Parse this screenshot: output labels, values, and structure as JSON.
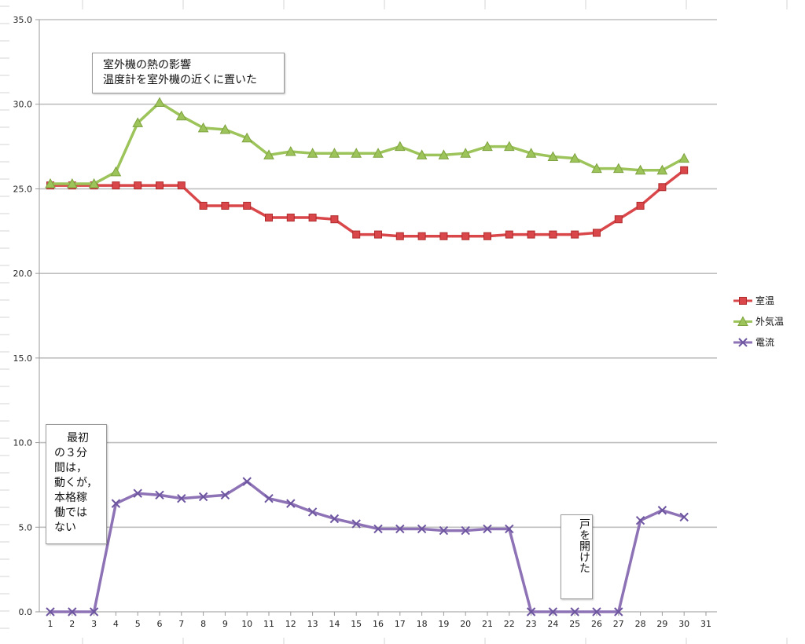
{
  "colors": {
    "room": "#d9474a",
    "outside": "#9cc45a",
    "current": "#8e72b6",
    "grid": "#bfbfbf",
    "sheet_grid": "#d6d6d6"
  },
  "annotations": {
    "heat": [
      "室外機の熱の影響",
      "温度計を室外機の近くに置いた"
    ],
    "first": [
      "最初",
      "の３分",
      "間は，",
      "動くが，",
      "本格稼",
      "働では",
      "ない"
    ],
    "door": "戸を開けた"
  },
  "chart_data": {
    "type": "line",
    "x": [
      1,
      2,
      3,
      4,
      5,
      6,
      7,
      8,
      9,
      10,
      11,
      12,
      13,
      14,
      15,
      16,
      17,
      18,
      19,
      20,
      21,
      22,
      23,
      24,
      25,
      26,
      27,
      28,
      29,
      30
    ],
    "x_ticks": [
      "1",
      "2",
      "3",
      "4",
      "5",
      "6",
      "7",
      "8",
      "9",
      "10",
      "11",
      "12",
      "13",
      "14",
      "15",
      "16",
      "17",
      "18",
      "19",
      "20",
      "21",
      "22",
      "23",
      "24",
      "25",
      "26",
      "27",
      "28",
      "29",
      "30",
      "31"
    ],
    "y_ticks": [
      "0.0",
      "5.0",
      "10.0",
      "15.0",
      "20.0",
      "25.0",
      "30.0",
      "35.0"
    ],
    "ylim": [
      0,
      35
    ],
    "grid": true,
    "legend_position": "right",
    "series": [
      {
        "name": "室温",
        "marker": "square",
        "values": [
          25.2,
          25.2,
          25.2,
          25.2,
          25.2,
          25.2,
          25.2,
          24.0,
          24.0,
          24.0,
          23.3,
          23.3,
          23.3,
          23.2,
          22.3,
          22.3,
          22.2,
          22.2,
          22.2,
          22.2,
          22.2,
          22.3,
          22.3,
          22.3,
          22.3,
          22.4,
          23.2,
          24.0,
          25.1,
          26.1
        ]
      },
      {
        "name": "外気温",
        "marker": "triangle",
        "values": [
          25.3,
          25.3,
          25.3,
          26.0,
          28.9,
          30.1,
          29.3,
          28.6,
          28.5,
          28.0,
          27.0,
          27.2,
          27.1,
          27.1,
          27.1,
          27.1,
          27.5,
          27.0,
          27.0,
          27.1,
          27.5,
          27.5,
          27.1,
          26.9,
          26.8,
          26.2,
          26.2,
          26.1,
          26.1,
          26.8
        ]
      },
      {
        "name": "電流",
        "marker": "x",
        "values": [
          0.0,
          0.0,
          0.0,
          6.4,
          7.0,
          6.9,
          6.7,
          6.8,
          6.9,
          7.7,
          6.7,
          6.4,
          5.9,
          5.5,
          5.2,
          4.9,
          4.9,
          4.9,
          4.8,
          4.8,
          4.9,
          4.9,
          0.0,
          0.0,
          0.0,
          0.0,
          0.0,
          5.4,
          6.0,
          5.6
        ]
      }
    ]
  }
}
